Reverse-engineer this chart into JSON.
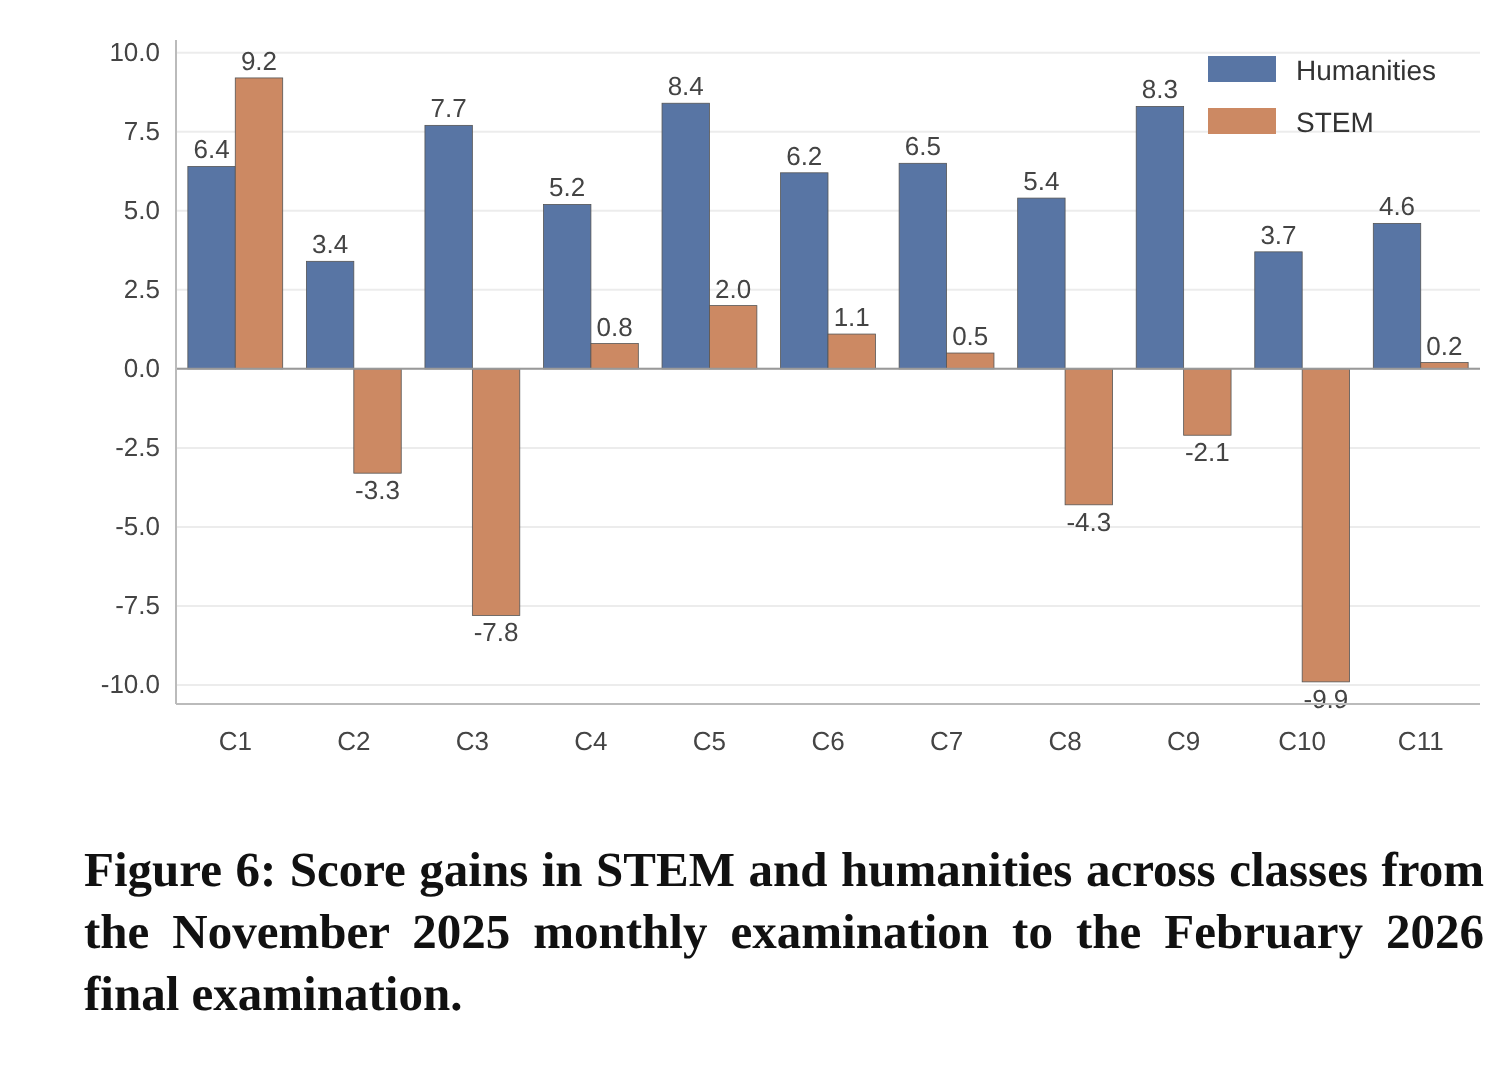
{
  "chart_data": {
    "type": "bar",
    "categories": [
      "C1",
      "C2",
      "C3",
      "C4",
      "C5",
      "C6",
      "C7",
      "C8",
      "C9",
      "C10",
      "C11"
    ],
    "series": [
      {
        "name": "Humanities",
        "color": "#5875a4",
        "values": [
          6.4,
          3.4,
          7.7,
          5.2,
          8.4,
          6.2,
          6.5,
          5.4,
          8.3,
          3.7,
          4.6
        ],
        "value_labels": [
          "6.4",
          "3.4",
          "7.7",
          "5.2",
          "8.4",
          "6.2",
          "6.5",
          "5.4",
          "8.3",
          "3.7",
          "4.6"
        ]
      },
      {
        "name": "STEM",
        "color": "#cc8963",
        "values": [
          9.2,
          -3.3,
          -7.8,
          0.8,
          2.0,
          1.1,
          0.5,
          -4.3,
          -2.1,
          -9.9,
          0.2
        ],
        "value_labels": [
          "9.2",
          "-3.3",
          "-7.8",
          "0.8",
          "2.0",
          "1.1",
          "0.5",
          "-4.3",
          "-2.1",
          "-9.9",
          "0.2"
        ]
      }
    ],
    "ylim": [
      -10.6,
      10.4
    ],
    "yticks": [
      {
        "value": -10,
        "label": "-10.0"
      },
      {
        "value": -7.5,
        "label": "-7.5"
      },
      {
        "value": -5,
        "label": "-5.0"
      },
      {
        "value": -2.5,
        "label": "-2.5"
      },
      {
        "value": 0,
        "label": "0.0"
      },
      {
        "value": 2.5,
        "label": "2.5"
      },
      {
        "value": 5,
        "label": "5.0"
      },
      {
        "value": 7.5,
        "label": "7.5"
      },
      {
        "value": 10,
        "label": "10.0"
      }
    ],
    "grid": "y",
    "legend": "top right",
    "annotations": [
      "Figure 6: Score gains in STEM and humanities across classes from the November 2025 monthly examination to the February 2026 final examination."
    ]
  }
}
